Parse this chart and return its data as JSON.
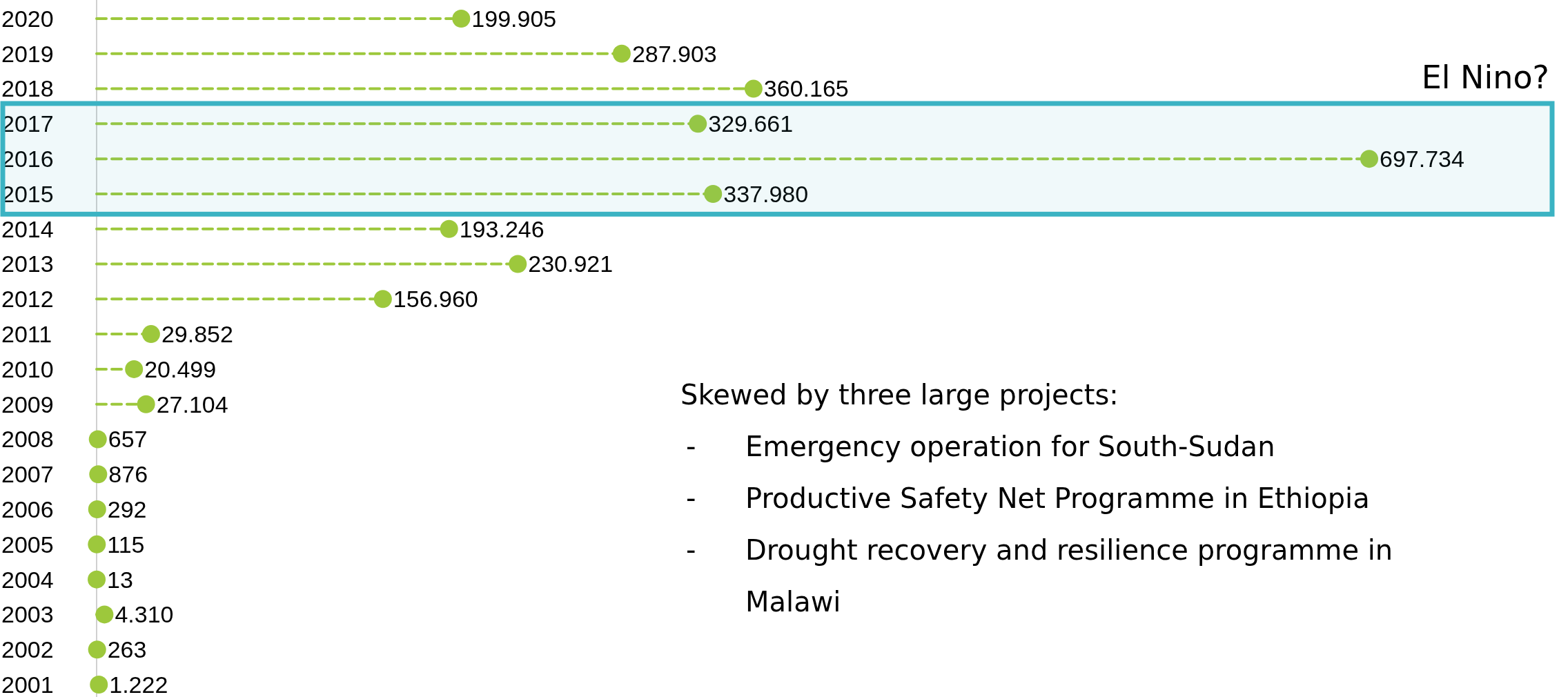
{
  "chart_data": {
    "type": "lollipop",
    "orientation": "horizontal",
    "categories": [
      "2020",
      "2019",
      "2018",
      "2017",
      "2016",
      "2015",
      "2014",
      "2013",
      "2012",
      "2011",
      "2010",
      "2009",
      "2008",
      "2007",
      "2006",
      "2005",
      "2004",
      "2003",
      "2002",
      "2001"
    ],
    "values": [
      199905,
      287903,
      360165,
      329661,
      697734,
      337980,
      193246,
      230921,
      156960,
      29852,
      20499,
      27104,
      657,
      876,
      292,
      115,
      13,
      4310,
      263,
      1222
    ],
    "value_labels": [
      "199.905",
      "287.903",
      "360.165",
      "329.661",
      "697.734",
      "337.980",
      "193.246",
      "230.921",
      "156.960",
      "29.852",
      "20.499",
      "27.104",
      "657",
      "876",
      "292",
      "115",
      "13",
      "4.310",
      "263",
      "1.222"
    ],
    "color": "#9dc83c",
    "marker": "circle",
    "line_style": "dashed",
    "tick_labels": "y",
    "xlim": [
      0,
      697734
    ],
    "bands": [
      {
        "axis": "y",
        "from": "2017",
        "to": "2015",
        "label": "El Nino?",
        "color": "#3bb3c3"
      }
    ],
    "annotations": [
      "Skewed by three large projects:",
      "- Emergency operation for South-Sudan",
      "- Productive Safety Net Programme in Ethiopia",
      "- Drought recovery and resilience programme in Malawi"
    ]
  }
}
